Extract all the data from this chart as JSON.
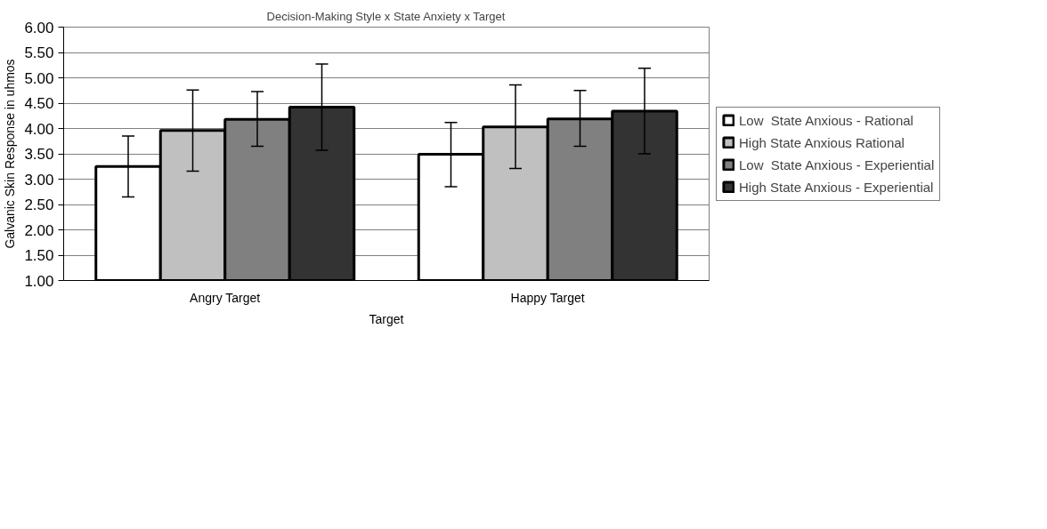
{
  "chart_data": {
    "type": "bar",
    "title": "Decision-Making Style x State Anxiety x Target",
    "xlabel": "Target",
    "ylabel": "Galvanic Skin Response in uhmos",
    "categories": [
      "Angry Target",
      "Happy Target"
    ],
    "series": [
      {
        "name": "Low  State Anxious - Rational",
        "color": "#ffffff",
        "values": [
          3.25,
          3.49
        ],
        "errors": [
          [
            2.65,
            3.85
          ],
          [
            2.85,
            4.12
          ]
        ]
      },
      {
        "name": "High State Anxious Rational",
        "color": "#c0c0c0",
        "values": [
          3.96,
          4.03
        ],
        "errors": [
          [
            3.16,
            4.76
          ],
          [
            3.21,
            4.86
          ]
        ]
      },
      {
        "name": "Low  State Anxious - Experiential",
        "color": "#808080",
        "values": [
          4.18,
          4.19
        ],
        "errors": [
          [
            3.65,
            4.73
          ],
          [
            3.65,
            4.75
          ]
        ]
      },
      {
        "name": "High State Anxious - Experiential",
        "color": "#333333",
        "values": [
          4.42,
          4.34
        ],
        "errors": [
          [
            3.57,
            5.27
          ],
          [
            3.5,
            5.19
          ]
        ]
      }
    ],
    "ylim": [
      1,
      6
    ],
    "yticks": [
      {
        "value": 1,
        "label": "1.00"
      },
      {
        "value": 1.5,
        "label": "1.50"
      },
      {
        "value": 2,
        "label": "2.00"
      },
      {
        "value": 2.5,
        "label": "2.50"
      },
      {
        "value": 3,
        "label": "3.00"
      },
      {
        "value": 3.5,
        "label": "3.50"
      },
      {
        "value": 4,
        "label": "4.00"
      },
      {
        "value": 4.5,
        "label": "4.50"
      },
      {
        "value": 5,
        "label": "5.00"
      },
      {
        "value": 5.5,
        "label": "5.50"
      },
      {
        "value": 6,
        "label": "6.00"
      }
    ],
    "grid": "y",
    "legend": "right"
  }
}
